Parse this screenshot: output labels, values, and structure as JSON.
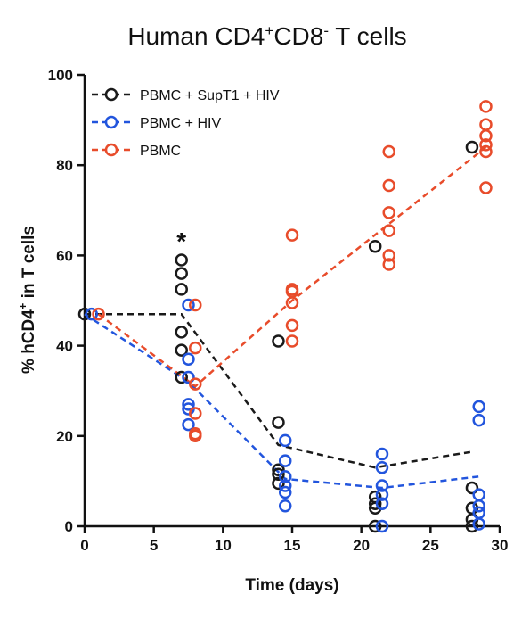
{
  "chart_data": {
    "type": "scatter",
    "title": {
      "main_a": "Human CD4",
      "sup_a": "+",
      "main_b": "CD8",
      "sup_b": "-",
      "main_c": " T cells"
    },
    "xlabel": "Time (days)",
    "ylabel": {
      "a": "% hCD4",
      "sup": "+",
      "b": " in T cells"
    },
    "xlim": [
      0,
      30
    ],
    "ylim": [
      0,
      100
    ],
    "xticks": [
      0,
      5,
      10,
      15,
      20,
      25,
      30
    ],
    "yticks": [
      0,
      20,
      40,
      60,
      80,
      100
    ],
    "grid": false,
    "legend_position": "top-left",
    "annotations": [
      {
        "text": "*",
        "x": 7,
        "y": 64
      }
    ],
    "series": [
      {
        "name": "PBMC + SupT1 + HIV",
        "color": "#1a1a1a",
        "marker": "open-circle",
        "line": "dashed",
        "mean_line": [
          [
            0,
            47
          ],
          [
            7,
            47
          ],
          [
            14,
            18
          ],
          [
            21,
            13
          ],
          [
            28,
            16.5
          ]
        ],
        "points": [
          [
            0,
            47
          ],
          [
            7,
            59
          ],
          [
            7,
            56
          ],
          [
            7,
            52.5
          ],
          [
            7,
            43
          ],
          [
            7,
            39
          ],
          [
            7,
            33
          ],
          [
            14,
            41
          ],
          [
            14,
            23
          ],
          [
            14,
            12.5
          ],
          [
            14,
            11.5
          ],
          [
            14,
            9.5
          ],
          [
            21,
            62
          ],
          [
            21,
            6.5
          ],
          [
            21,
            5
          ],
          [
            21,
            4
          ],
          [
            21,
            0
          ],
          [
            28,
            84
          ],
          [
            28,
            8.5
          ],
          [
            28,
            4
          ],
          [
            28,
            1.5
          ],
          [
            28,
            0
          ]
        ]
      },
      {
        "name": "PBMC + HIV",
        "color": "#2255dd",
        "marker": "open-circle",
        "line": "dashed",
        "mean_line": [
          [
            0,
            47
          ],
          [
            7.5,
            32
          ],
          [
            14.5,
            10.5
          ],
          [
            21.5,
            8.5
          ],
          [
            28.5,
            11
          ]
        ],
        "points": [
          [
            0.5,
            47
          ],
          [
            7.5,
            49
          ],
          [
            7.5,
            37
          ],
          [
            7.5,
            33
          ],
          [
            7.5,
            27
          ],
          [
            7.5,
            26
          ],
          [
            7.5,
            22.5
          ],
          [
            14.5,
            19
          ],
          [
            14.5,
            14.5
          ],
          [
            14.5,
            11
          ],
          [
            14.5,
            9
          ],
          [
            14.5,
            7.5
          ],
          [
            14.5,
            4.5
          ],
          [
            21.5,
            16
          ],
          [
            21.5,
            13
          ],
          [
            21.5,
            9
          ],
          [
            21.5,
            7
          ],
          [
            21.5,
            5
          ],
          [
            21.5,
            0
          ],
          [
            28.5,
            26.5
          ],
          [
            28.5,
            23.5
          ],
          [
            28.5,
            7
          ],
          [
            28.5,
            4.5
          ],
          [
            28.5,
            3
          ],
          [
            28.5,
            0.5
          ]
        ]
      },
      {
        "name": "PBMC",
        "color": "#e84c2b",
        "marker": "open-circle",
        "line": "dashed",
        "mean_line": [
          [
            1,
            47
          ],
          [
            8,
            31
          ],
          [
            15,
            50
          ],
          [
            22,
            67
          ],
          [
            29,
            84
          ]
        ],
        "points": [
          [
            1,
            47
          ],
          [
            8,
            49
          ],
          [
            8,
            39.5
          ],
          [
            8,
            31.5
          ],
          [
            8,
            25
          ],
          [
            8,
            20.5
          ],
          [
            8,
            20
          ],
          [
            15,
            64.5
          ],
          [
            15,
            52.5
          ],
          [
            15,
            52
          ],
          [
            15,
            49.5
          ],
          [
            15,
            44.5
          ],
          [
            15,
            41
          ],
          [
            22,
            83
          ],
          [
            22,
            75.5
          ],
          [
            22,
            69.5
          ],
          [
            22,
            65.5
          ],
          [
            22,
            60
          ],
          [
            22,
            58
          ],
          [
            29,
            93
          ],
          [
            29,
            89
          ],
          [
            29,
            86.5
          ],
          [
            29,
            84.5
          ],
          [
            29,
            83
          ],
          [
            29,
            75
          ]
        ]
      }
    ]
  }
}
